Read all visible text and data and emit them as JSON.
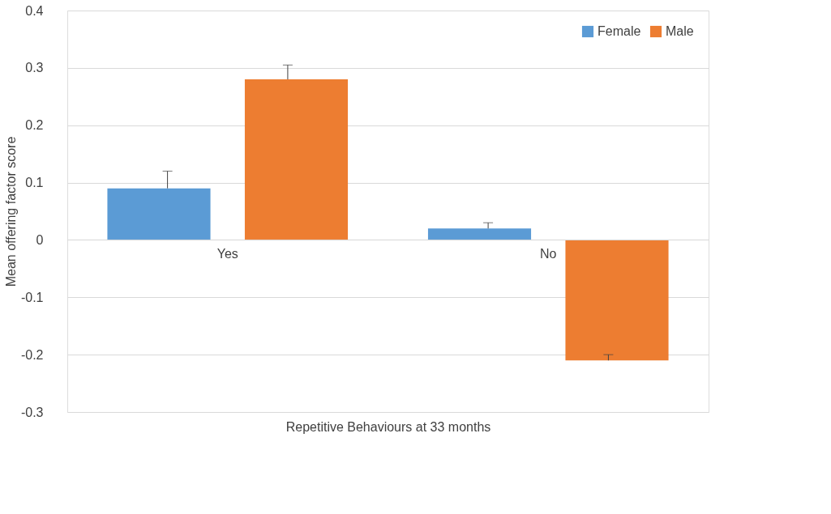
{
  "chart_data": {
    "type": "bar",
    "xlabel": "Repetitive Behaviours at 33 months",
    "ylabel": "Mean offering factor score",
    "categories": [
      "Yes",
      "No"
    ],
    "series": [
      {
        "name": "Female",
        "color": "#5b9bd5",
        "values": [
          0.09,
          0.02
        ],
        "errors": [
          [
            0.09,
            0.12
          ],
          [
            0.02,
            0.03
          ]
        ]
      },
      {
        "name": "Male",
        "color": "#ed7d31",
        "values": [
          0.28,
          -0.21
        ],
        "errors": [
          [
            0.28,
            0.305
          ],
          [
            -0.21,
            -0.2
          ]
        ]
      }
    ],
    "ylim": [
      -0.3,
      0.4
    ],
    "yticks": [
      -0.3,
      -0.2,
      -0.1,
      0,
      0.1,
      0.2,
      0.3,
      0.4
    ],
    "grid": "y",
    "legend": "top right"
  }
}
